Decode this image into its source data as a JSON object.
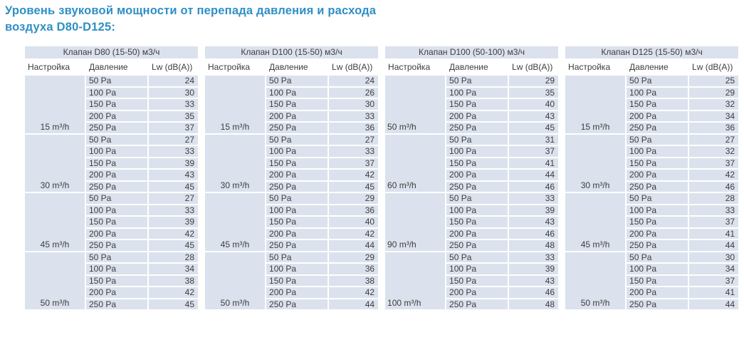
{
  "colors": {
    "accent": "#2e8fc5",
    "cell_bg": "#dbe2ed",
    "text": "#3d3d3d",
    "page_bg": "#ffffff"
  },
  "page": {
    "title_line1": "Уровень звуковой мощности от перепада давления и расхода",
    "title_line2": "воздуха D80-D125:"
  },
  "column_headers": {
    "setting": "Настройка",
    "pressure": "Давление",
    "lw": "Lw (dB(A))"
  },
  "chart_data": {
    "type": "table",
    "note": "Sound power level Lw dB(A) vs pressure drop and air flow for valves D80-D125"
  },
  "tables": [
    {
      "title": "Клапан D80 (15-50) м3/ч",
      "label_align": "center",
      "groups": [
        {
          "flow": "15 m³/h",
          "rows": [
            [
              "50 Pa",
              "24"
            ],
            [
              "100 Pa",
              "30"
            ],
            [
              "150 Pa",
              "33"
            ],
            [
              "200 Pa",
              "35"
            ],
            [
              "250 Pa",
              "37"
            ]
          ]
        },
        {
          "flow": "30 m³/h",
          "rows": [
            [
              "50 Pa",
              "27"
            ],
            [
              "100 Pa",
              "33"
            ],
            [
              "150 Pa",
              "39"
            ],
            [
              "200 Pa",
              "43"
            ],
            [
              "250 Pa",
              "45"
            ]
          ]
        },
        {
          "flow": "45 m³/h",
          "rows": [
            [
              "50 Pa",
              "27"
            ],
            [
              "100 Pa",
              "33"
            ],
            [
              "150 Pa",
              "39"
            ],
            [
              "200 Pa",
              "42"
            ],
            [
              "250 Pa",
              "45"
            ]
          ]
        },
        {
          "flow": "50 m³/h",
          "rows": [
            [
              "50 Pa",
              "28"
            ],
            [
              "100 Pa",
              "34"
            ],
            [
              "150 Pa",
              "38"
            ],
            [
              "200 Pa",
              "42"
            ],
            [
              "250 Pa",
              "45"
            ]
          ]
        }
      ]
    },
    {
      "title": "Клапан D100 (15-50) м3/ч",
      "label_align": "center",
      "groups": [
        {
          "flow": "15 m³/h",
          "rows": [
            [
              "50 Pa",
              "24"
            ],
            [
              "100 Pa",
              "26"
            ],
            [
              "150 Pa",
              "30"
            ],
            [
              "200 Pa",
              "33"
            ],
            [
              "250 Pa",
              "36"
            ]
          ]
        },
        {
          "flow": "30 m³/h",
          "rows": [
            [
              "50 Pa",
              "27"
            ],
            [
              "100 Pa",
              "33"
            ],
            [
              "150 Pa",
              "37"
            ],
            [
              "200 Pa",
              "42"
            ],
            [
              "250 Pa",
              "45"
            ]
          ]
        },
        {
          "flow": "45 m³/h",
          "rows": [
            [
              "50 Pa",
              "29"
            ],
            [
              "100 Pa",
              "36"
            ],
            [
              "150 Pa",
              "40"
            ],
            [
              "200 Pa",
              "42"
            ],
            [
              "250 Pa",
              "44"
            ]
          ]
        },
        {
          "flow": "50 m³/h",
          "rows": [
            [
              "50 Pa",
              "29"
            ],
            [
              "100 Pa",
              "36"
            ],
            [
              "150 Pa",
              "38"
            ],
            [
              "200 Pa",
              "42"
            ],
            [
              "250 Pa",
              "44"
            ]
          ]
        }
      ]
    },
    {
      "title": "Клапан D100 (50-100) м3/ч",
      "label_align": "left",
      "groups": [
        {
          "flow": "50 m³/h",
          "rows": [
            [
              "50 Pa",
              "29"
            ],
            [
              "100 Pa",
              "35"
            ],
            [
              "150 Pa",
              "40"
            ],
            [
              "200 Pa",
              "43"
            ],
            [
              "250 Pa",
              "45"
            ]
          ]
        },
        {
          "flow": "60 m³/h",
          "rows": [
            [
              "50 Pa",
              "31"
            ],
            [
              "100 Pa",
              "37"
            ],
            [
              "150 Pa",
              "41"
            ],
            [
              "200 Pa",
              "44"
            ],
            [
              "250 Pa",
              "46"
            ]
          ]
        },
        {
          "flow": "90 m³/h",
          "rows": [
            [
              "50 Pa",
              "33"
            ],
            [
              "100 Pa",
              "39"
            ],
            [
              "150 Pa",
              "43"
            ],
            [
              "200 Pa",
              "46"
            ],
            [
              "250 Pa",
              "48"
            ]
          ]
        },
        {
          "flow": "100 m³/h",
          "rows": [
            [
              "50 Pa",
              "33"
            ],
            [
              "100 Pa",
              "39"
            ],
            [
              "150 Pa",
              "43"
            ],
            [
              "200 Pa",
              "46"
            ],
            [
              "250 Pa",
              "48"
            ]
          ]
        }
      ]
    },
    {
      "title": "Клапан D125 (15-50) м3/ч",
      "label_align": "center",
      "groups": [
        {
          "flow": "15 m³/h",
          "rows": [
            [
              "50 Pa",
              "25"
            ],
            [
              "100 Pa",
              "29"
            ],
            [
              "150 Pa",
              "32"
            ],
            [
              "200 Pa",
              "34"
            ],
            [
              "250 Pa",
              "36"
            ]
          ]
        },
        {
          "flow": "30 m³/h",
          "rows": [
            [
              "50 Pa",
              "27"
            ],
            [
              "100 Pa",
              "32"
            ],
            [
              "150 Pa",
              "37"
            ],
            [
              "200 Pa",
              "42"
            ],
            [
              "250 Pa",
              "46"
            ]
          ]
        },
        {
          "flow": "45 m³/h",
          "rows": [
            [
              "50 Pa",
              "28"
            ],
            [
              "100 Pa",
              "33"
            ],
            [
              "150 Pa",
              "37"
            ],
            [
              "200 Pa",
              "41"
            ],
            [
              "250 Pa",
              "44"
            ]
          ]
        },
        {
          "flow": "50 m³/h",
          "rows": [
            [
              "50 Pa",
              "30"
            ],
            [
              "100 Pa",
              "34"
            ],
            [
              "150 Pa",
              "37"
            ],
            [
              "200 Pa",
              "41"
            ],
            [
              "250 Pa",
              "44"
            ]
          ]
        }
      ]
    }
  ]
}
